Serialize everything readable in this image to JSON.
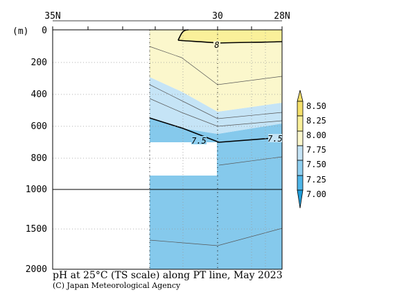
{
  "chart_data": {
    "type": "heatmap",
    "title": "pH at 25°C (TS scale) along PT line, May 2023",
    "credit": "(C) Japan Meteorological Agency",
    "y_unit": "(m)",
    "x_ticks": [
      "35N",
      "30",
      "28N"
    ],
    "y_ticks": [
      "0",
      "200",
      "400",
      "600",
      "800",
      "1000",
      "1500",
      "2000"
    ],
    "contour_labels": [
      "8",
      "7.5",
      "7.5"
    ],
    "colorbar": {
      "levels": [
        "8.50",
        "8.25",
        "8.00",
        "7.75",
        "7.50",
        "7.25",
        "7.00"
      ],
      "colors": [
        "#f5e06a",
        "#faf09a",
        "#fbf7cc",
        "#c5e4f6",
        "#8fcff0",
        "#4fb6e8",
        "#1f9dd9"
      ]
    },
    "zones": [
      {
        "range": "> 8.00",
        "color": "#faf09a"
      },
      {
        "range": "7.75 - 8.00",
        "color": "#fbf7cc"
      },
      {
        "range": "7.50 - 7.75",
        "color": "#c5e4f6"
      },
      {
        "range": "7.25 - 7.50",
        "color": "#8fcff0"
      }
    ]
  }
}
